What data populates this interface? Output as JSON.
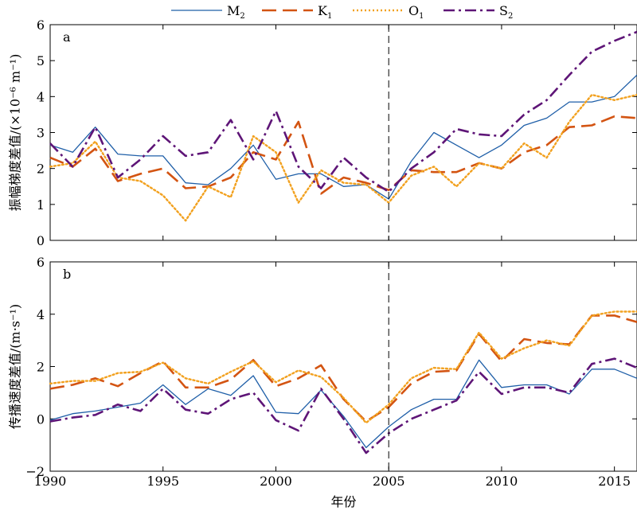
{
  "chart_data": [
    {
      "type": "line",
      "panel_label": "a",
      "ylabel": "振幅梯度差值/(×10⁻⁶ m⁻¹)",
      "ylim": [
        0,
        6
      ],
      "yticks": [
        0,
        1,
        2,
        3,
        4,
        5,
        6
      ],
      "xlim": [
        1990,
        2016
      ],
      "x": [
        1990,
        1991,
        1992,
        1993,
        1994,
        1995,
        1996,
        1997,
        1998,
        1999,
        2000,
        2001,
        2002,
        2003,
        2004,
        2005,
        2006,
        2007,
        2008,
        2009,
        2010,
        2011,
        2012,
        2013,
        2014,
        2015,
        2016
      ],
      "series": [
        {
          "name": "M2",
          "values": [
            2.65,
            2.45,
            3.15,
            2.4,
            2.35,
            2.35,
            1.6,
            1.55,
            2.0,
            2.65,
            1.7,
            1.85,
            1.85,
            1.5,
            1.55,
            1.15,
            2.2,
            3.0,
            2.65,
            2.3,
            2.65,
            3.2,
            3.4,
            3.85,
            3.85,
            4.0,
            4.6
          ]
        },
        {
          "name": "K1",
          "values": [
            2.3,
            2.05,
            2.55,
            1.65,
            1.85,
            2.0,
            1.45,
            1.5,
            1.75,
            2.45,
            2.25,
            3.3,
            1.3,
            1.75,
            1.6,
            1.4,
            1.95,
            1.9,
            1.9,
            2.15,
            2.0,
            2.45,
            2.65,
            3.15,
            3.2,
            3.45,
            3.4
          ]
        },
        {
          "name": "O1",
          "values": [
            2.05,
            2.15,
            2.75,
            1.75,
            1.65,
            1.25,
            0.55,
            1.5,
            1.2,
            2.9,
            2.45,
            1.05,
            1.95,
            1.6,
            1.55,
            1.05,
            1.8,
            2.05,
            1.5,
            2.15,
            2.0,
            2.7,
            2.3,
            3.3,
            4.05,
            3.9,
            4.05
          ]
        },
        {
          "name": "S2",
          "values": [
            2.7,
            2.05,
            3.15,
            1.75,
            2.25,
            2.9,
            2.35,
            2.45,
            3.35,
            2.25,
            3.6,
            2.05,
            1.45,
            2.3,
            1.75,
            1.35,
            2.0,
            2.45,
            3.1,
            2.95,
            2.9,
            3.5,
            3.9,
            4.6,
            5.25,
            5.55,
            5.8
          ]
        }
      ]
    },
    {
      "type": "line",
      "panel_label": "b",
      "ylabel": "传播速度差值/(m·s⁻¹)",
      "ylim": [
        -2,
        6
      ],
      "yticks": [
        -2,
        0,
        2,
        4,
        6
      ],
      "xlim": [
        1990,
        2016
      ],
      "xticks": [
        1990,
        1995,
        2000,
        2005,
        2010,
        2015
      ],
      "xlabel": "年份",
      "x": [
        1990,
        1991,
        1992,
        1993,
        1994,
        1995,
        1996,
        1997,
        1998,
        1999,
        2000,
        2001,
        2002,
        2003,
        2004,
        2005,
        2006,
        2007,
        2008,
        2009,
        2010,
        2011,
        2012,
        2013,
        2014,
        2015,
        2016
      ],
      "series": [
        {
          "name": "M2",
          "values": [
            -0.05,
            0.2,
            0.3,
            0.45,
            0.6,
            1.3,
            0.55,
            1.15,
            0.9,
            1.65,
            0.25,
            0.2,
            1.1,
            0.1,
            -1.1,
            -0.3,
            0.35,
            0.75,
            0.75,
            2.25,
            1.2,
            1.3,
            1.3,
            0.95,
            1.9,
            1.9,
            1.55
          ]
        },
        {
          "name": "K1",
          "values": [
            1.15,
            1.3,
            1.55,
            1.25,
            1.75,
            2.2,
            1.2,
            1.2,
            1.5,
            2.25,
            1.25,
            1.55,
            2.05,
            0.75,
            -0.1,
            0.45,
            1.35,
            1.8,
            1.85,
            3.25,
            2.2,
            3.05,
            2.9,
            2.85,
            3.95,
            3.95,
            3.7
          ]
        },
        {
          "name": "O1",
          "values": [
            1.35,
            1.45,
            1.45,
            1.75,
            1.8,
            2.15,
            1.55,
            1.35,
            1.8,
            2.2,
            1.4,
            1.85,
            1.6,
            0.8,
            -0.15,
            0.55,
            1.55,
            1.95,
            1.9,
            3.3,
            2.3,
            2.7,
            3.0,
            2.8,
            3.95,
            4.1,
            4.1
          ]
        },
        {
          "name": "S2",
          "values": [
            -0.1,
            0.05,
            0.15,
            0.55,
            0.3,
            1.15,
            0.35,
            0.2,
            0.75,
            1.0,
            -0.05,
            -0.45,
            1.15,
            0.0,
            -1.3,
            -0.55,
            0.0,
            0.35,
            0.7,
            1.8,
            0.95,
            1.2,
            1.2,
            1.0,
            2.1,
            2.3,
            1.95
          ]
        }
      ]
    }
  ],
  "legend": {
    "entries": [
      {
        "series": "M2",
        "base": "M",
        "sub": "2",
        "color": "#1f5fa8",
        "style": "solid"
      },
      {
        "series": "K1",
        "base": "K",
        "sub": "1",
        "color": "#d35412",
        "style": "dashed"
      },
      {
        "series": "O1",
        "base": "O",
        "sub": "1",
        "color": "#f2a11f",
        "style": "dotted"
      },
      {
        "series": "S2",
        "base": "S",
        "sub": "2",
        "color": "#5e1577",
        "style": "dashdot"
      }
    ]
  },
  "reference_year": 2005
}
